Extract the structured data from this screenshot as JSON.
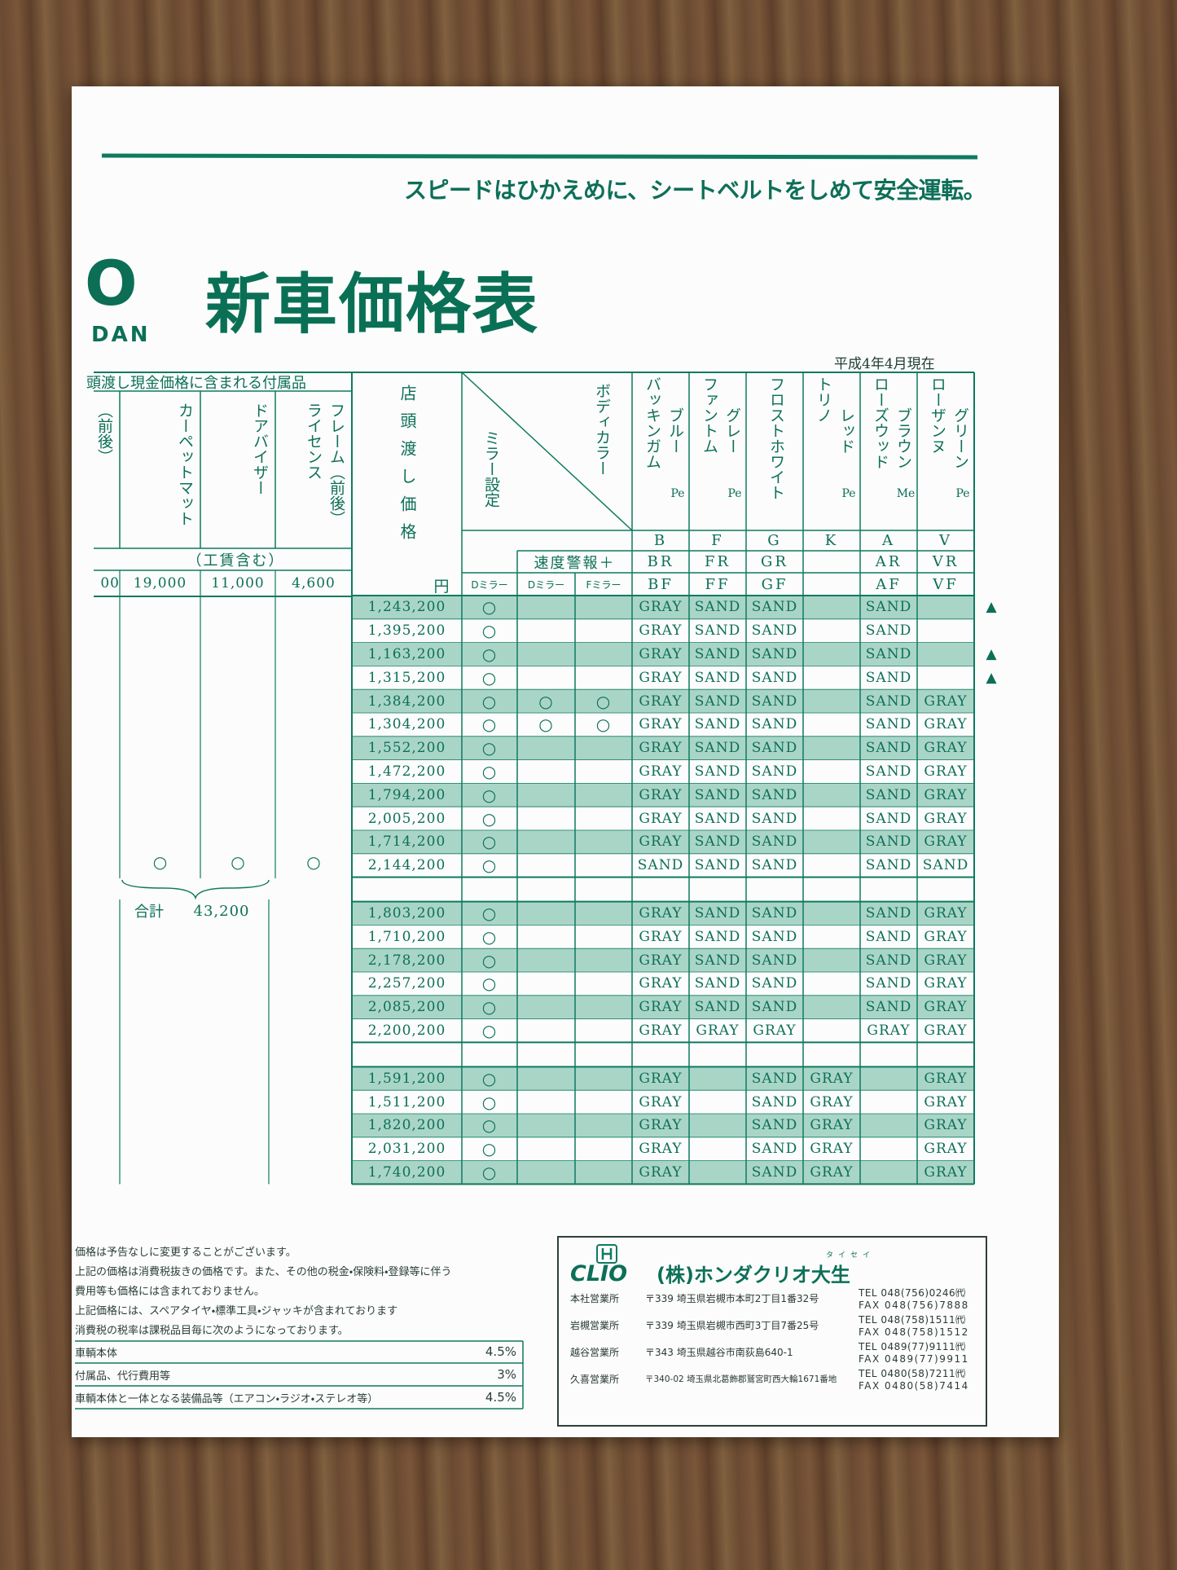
{
  "slogan": "スピードはひかえめに、シートベルトをしめて安全運転。",
  "logo": {
    "mark": "O",
    "text": "DAN"
  },
  "title": "新車価格表",
  "as_of": "平成4年4月現在",
  "accessories": {
    "header": "頭渡し現金価格に含まれる付属品",
    "columns": [
      {
        "name_lines": [
          "（前後）"
        ],
        "price": "00",
        "included": null
      },
      {
        "name_lines": [
          "カーペットマット"
        ],
        "price": "19,000",
        "included": "○"
      },
      {
        "name_lines": [
          "ドアバイザー"
        ],
        "price": "11,000",
        "included": "○"
      },
      {
        "name_lines": [
          "フレーム（前後）",
          "ライセンス"
        ],
        "price": "4,600",
        "included": "○"
      }
    ],
    "labor_note": "（工賃含む）",
    "total_label": "合計",
    "total": "43,200"
  },
  "price_table": {
    "price_header": "店頭渡し価格",
    "price_unit": "円",
    "mirror_header": "ミラー設定",
    "color_header": "ボディカラー",
    "speed_alarm_header": "速度警報＋",
    "mirror_types": [
      "Dミラー",
      "Dミラー",
      "Fミラー"
    ],
    "body_colors": [
      {
        "name_lines": [
          "ブルー",
          "バッキンガム"
        ],
        "finish": "Pe",
        "codes": [
          "B",
          "BR",
          "BF"
        ]
      },
      {
        "name_lines": [
          "グレー",
          "ファントム"
        ],
        "finish": "Pe",
        "codes": [
          "F",
          "FR",
          "FF"
        ]
      },
      {
        "name_lines": [
          "フロストホワイト"
        ],
        "finish": null,
        "codes": [
          "G",
          "GR",
          "GF"
        ]
      },
      {
        "name_lines": [
          "レッド",
          "トリノ"
        ],
        "finish": "Pe",
        "codes": [
          "K",
          null,
          null
        ]
      },
      {
        "name_lines": [
          "ブラウン",
          "ローズウッド"
        ],
        "finish": "Me",
        "codes": [
          "A",
          "AR",
          "AF"
        ]
      },
      {
        "name_lines": [
          "グリーン",
          "ローザンヌ"
        ],
        "finish": "Pe",
        "codes": [
          "V",
          "VR",
          "VF"
        ]
      }
    ],
    "groups": [
      [
        [
          "1,243,200",
          "○",
          null,
          null,
          "GRAY",
          "SAND",
          "SAND",
          null,
          "SAND",
          null,
          "▲"
        ],
        [
          "1,395,200",
          "○",
          null,
          null,
          "GRAY",
          "SAND",
          "SAND",
          null,
          "SAND",
          null,
          null
        ],
        [
          "1,163,200",
          "○",
          null,
          null,
          "GRAY",
          "SAND",
          "SAND",
          null,
          "SAND",
          null,
          "▲"
        ],
        [
          "1,315,200",
          "○",
          null,
          null,
          "GRAY",
          "SAND",
          "SAND",
          null,
          "SAND",
          null,
          "▲"
        ],
        [
          "1,384,200",
          "○",
          "○",
          "○",
          "GRAY",
          "SAND",
          "SAND",
          null,
          "SAND",
          "GRAY",
          null
        ],
        [
          "1,304,200",
          "○",
          "○",
          "○",
          "GRAY",
          "SAND",
          "SAND",
          null,
          "SAND",
          "GRAY",
          null
        ],
        [
          "1,552,200",
          "○",
          null,
          null,
          "GRAY",
          "SAND",
          "SAND",
          null,
          "SAND",
          "GRAY",
          null
        ],
        [
          "1,472,200",
          "○",
          null,
          null,
          "GRAY",
          "SAND",
          "SAND",
          null,
          "SAND",
          "GRAY",
          null
        ],
        [
          "1,794,200",
          "○",
          null,
          null,
          "GRAY",
          "SAND",
          "SAND",
          null,
          "SAND",
          "GRAY",
          null
        ],
        [
          "2,005,200",
          "○",
          null,
          null,
          "GRAY",
          "SAND",
          "SAND",
          null,
          "SAND",
          "GRAY",
          null
        ],
        [
          "1,714,200",
          "○",
          null,
          null,
          "GRAY",
          "SAND",
          "SAND",
          null,
          "SAND",
          "GRAY",
          null
        ],
        [
          "2,144,200",
          "○",
          null,
          null,
          "SAND",
          "SAND",
          "SAND",
          null,
          "SAND",
          "SAND",
          null
        ]
      ],
      [
        [
          "1,803,200",
          "○",
          null,
          null,
          "GRAY",
          "SAND",
          "SAND",
          null,
          "SAND",
          "GRAY",
          null
        ],
        [
          "1,710,200",
          "○",
          null,
          null,
          "GRAY",
          "SAND",
          "SAND",
          null,
          "SAND",
          "GRAY",
          null
        ],
        [
          "2,178,200",
          "○",
          null,
          null,
          "GRAY",
          "SAND",
          "SAND",
          null,
          "SAND",
          "GRAY",
          null
        ],
        [
          "2,257,200",
          "○",
          null,
          null,
          "GRAY",
          "SAND",
          "SAND",
          null,
          "SAND",
          "GRAY",
          null
        ],
        [
          "2,085,200",
          "○",
          null,
          null,
          "GRAY",
          "SAND",
          "SAND",
          null,
          "SAND",
          "GRAY",
          null
        ],
        [
          "2,200,200",
          "○",
          null,
          null,
          "GRAY",
          "GRAY",
          "GRAY",
          null,
          "GRAY",
          "GRAY",
          null
        ]
      ],
      [
        [
          "1,591,200",
          "○",
          null,
          null,
          "GRAY",
          null,
          "SAND",
          "GRAY",
          null,
          "GRAY",
          null
        ],
        [
          "1,511,200",
          "○",
          null,
          null,
          "GRAY",
          null,
          "SAND",
          "GRAY",
          null,
          "GRAY",
          null
        ],
        [
          "1,820,200",
          "○",
          null,
          null,
          "GRAY",
          null,
          "SAND",
          "GRAY",
          null,
          "GRAY",
          null
        ],
        [
          "2,031,200",
          "○",
          null,
          null,
          "GRAY",
          null,
          "SAND",
          "GRAY",
          null,
          "GRAY",
          null
        ],
        [
          "1,740,200",
          "○",
          null,
          null,
          "GRAY",
          null,
          "SAND",
          "GRAY",
          null,
          "GRAY",
          null
        ]
      ]
    ]
  },
  "notes": [
    "価格は予告なしに変更することがございます。",
    "上記の価格は消費税抜きの価格です。また、その他の税金・保険料・登録等に伴う",
    "費用等も価格には含まれておりません。",
    "上記価格には、スペアタイヤ・標準工具・ジャッキが含まれております",
    "消費税の税率は課税品目毎に次のようになっております。"
  ],
  "tax_rates": [
    [
      "車輌本体",
      "4.5%"
    ],
    [
      "付属品、代行費用等",
      "3%"
    ],
    [
      "車輌本体と一体となる装備品等（エアコン・ラジオ・ステレオ等）",
      "4.5%"
    ]
  ],
  "dealer": {
    "logo": "CLIO",
    "company": "(株)ホンダクリオ大生",
    "ruby": "タイセイ",
    "offices": [
      {
        "name": "本社営業所",
        "address": "〒339 埼玉県岩槻市本町2丁目1番32号",
        "tel": "TEL 048(756)0246㈹",
        "fax": "FAX 048(756)7888"
      },
      {
        "name": "岩槻営業所",
        "address": "〒339 埼玉県岩槻市西町3丁目7番25号",
        "tel": "TEL 048(758)1511㈹",
        "fax": "FAX 048(758)1512"
      },
      {
        "name": "越谷営業所",
        "address": "〒343 埼玉県越谷市南荻島640-1",
        "tel": "TEL 0489(77)9111㈹",
        "fax": "FAX 0489(77)9911"
      },
      {
        "name": "久喜営業所",
        "address": "〒340-02 埼玉県北葛飾郡鷲宮町西大輪1671番地",
        "tel": "TEL 0480(58)7211㈹",
        "fax": "FAX 0480(58)7414"
      }
    ]
  }
}
